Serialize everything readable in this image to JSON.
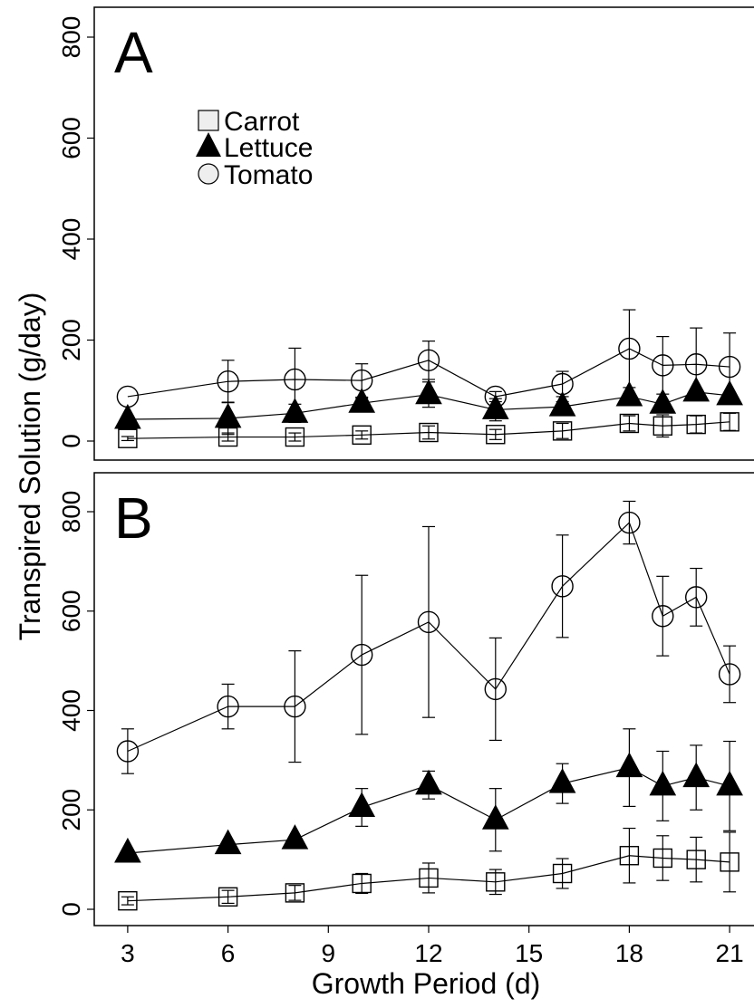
{
  "chart_data": [
    {
      "type": "line",
      "panel_label": "A",
      "x": [
        3,
        6,
        8,
        10,
        12,
        14,
        16,
        18,
        19,
        20,
        21
      ],
      "ylim": [
        0,
        850
      ],
      "yticks": [
        0,
        200,
        400,
        600,
        800
      ],
      "legend": {
        "placement": "top-left",
        "items": [
          {
            "label": "Carrot",
            "marker": "square"
          },
          {
            "label": "Lettuce",
            "marker": "triangle"
          },
          {
            "label": "Tomato",
            "marker": "circle"
          }
        ]
      },
      "series": [
        {
          "name": "Carrot",
          "marker": "square",
          "values": [
            5,
            8,
            8,
            12,
            17,
            13,
            20,
            35,
            30,
            33,
            38
          ],
          "errors": [
            4,
            8,
            8,
            8,
            13,
            10,
            15,
            15,
            22,
            17,
            17
          ]
        },
        {
          "name": "Lettuce",
          "marker": "triangle",
          "values": [
            43,
            45,
            55,
            75,
            92,
            62,
            68,
            88,
            73,
            97,
            90
          ],
          "errors": [
            0,
            32,
            18,
            10,
            25,
            22,
            10,
            0,
            0,
            0,
            0
          ]
        },
        {
          "name": "Tomato",
          "marker": "circle",
          "values": [
            88,
            118,
            122,
            120,
            160,
            88,
            113,
            183,
            150,
            152,
            147
          ],
          "errors": [
            0,
            42,
            62,
            33,
            38,
            10,
            25,
            77,
            57,
            72,
            67
          ]
        }
      ]
    },
    {
      "type": "line",
      "panel_label": "B",
      "x": [
        3,
        6,
        8,
        10,
        12,
        14,
        16,
        18,
        19,
        20,
        21
      ],
      "ylim": [
        -30,
        850
      ],
      "yticks": [
        0,
        200,
        400,
        600,
        800
      ],
      "series": [
        {
          "name": "Carrot",
          "marker": "square",
          "values": [
            17,
            25,
            33,
            52,
            63,
            55,
            72,
            108,
            103,
            100,
            95
          ],
          "errors": [
            8,
            13,
            15,
            20,
            30,
            25,
            30,
            55,
            45,
            45,
            60
          ]
        },
        {
          "name": "Lettuce",
          "marker": "triangle",
          "values": [
            113,
            130,
            140,
            205,
            250,
            180,
            253,
            285,
            248,
            265,
            248
          ],
          "errors": [
            0,
            0,
            0,
            38,
            28,
            63,
            40,
            78,
            70,
            65,
            90
          ]
        },
        {
          "name": "Tomato",
          "marker": "circle",
          "values": [
            318,
            408,
            408,
            512,
            578,
            443,
            650,
            778,
            590,
            628,
            473
          ],
          "errors": [
            45,
            45,
            112,
            160,
            192,
            103,
            103,
            43,
            80,
            58,
            57
          ]
        }
      ]
    }
  ],
  "axes": {
    "ylabel": "Transpired Solution (g/day)",
    "xlabel": "Growth Period (d)",
    "xticks": [
      3,
      6,
      9,
      12,
      15,
      18,
      21
    ],
    "xlim": [
      2.0,
      22.0
    ]
  },
  "colors": {
    "line": "#000000",
    "marker_fill_open": "#ffffff",
    "marker_fill_solid": "#000000",
    "legend_square_fill": "#eeeeee"
  }
}
